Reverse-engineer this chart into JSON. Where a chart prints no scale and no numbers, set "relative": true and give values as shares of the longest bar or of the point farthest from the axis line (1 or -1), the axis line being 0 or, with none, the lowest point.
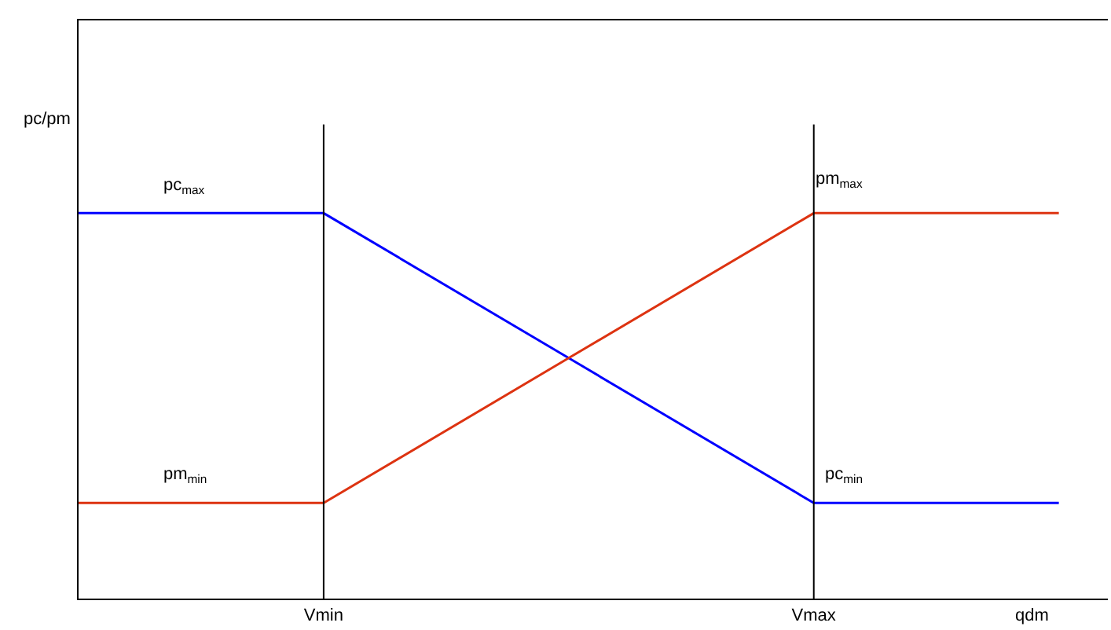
{
  "chart_data": {
    "type": "line",
    "relative": true,
    "xlabel": "qdm",
    "ylabel": "pc/pm",
    "categories": [
      null,
      "Vmin",
      null,
      "Vmax",
      null
    ],
    "tick_labels": "x",
    "marker": "none",
    "line_style": "solid",
    "series": [
      {
        "color": "#0000ff",
        "values": [
          1,
          1,
          0.624,
          0.248,
          0.248
        ]
      },
      {
        "color": "#dd3311",
        "values": [
          0.248,
          0.248,
          0.624,
          1,
          1
        ]
      }
    ],
    "ref_lines": [
      {
        "axis": "x",
        "value": "Vmin",
        "color": "#000000"
      },
      {
        "axis": "x",
        "value": "Vmax",
        "color": "#000000"
      }
    ],
    "annotations": [
      "pc$_{max}$",
      "pm$_{min}$",
      "pm$_{max}$",
      "pc$_{min}$"
    ]
  }
}
